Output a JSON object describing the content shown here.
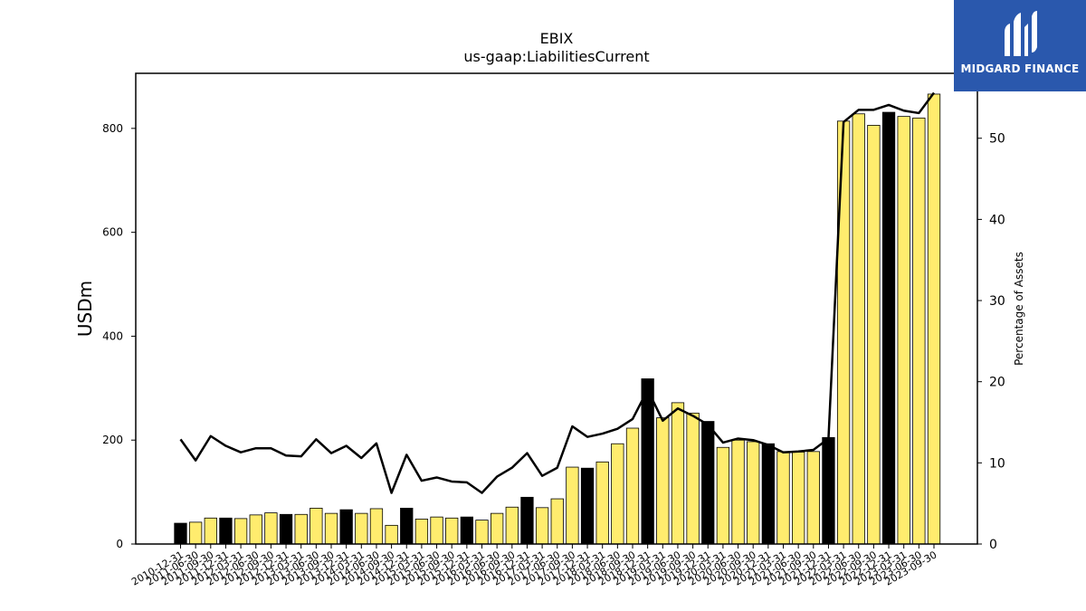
{
  "chart_data": {
    "type": "bar",
    "title": "EBIX",
    "subtitle": "us-gaap:LiabilitiesCurrent",
    "ylabel": "USDm",
    "y2label": "Percentage of Assets",
    "ylim": [
      0,
      906
    ],
    "y2lim": [
      0,
      58
    ],
    "yticks": [
      0,
      200,
      400,
      600,
      800
    ],
    "y2ticks": [
      0,
      10,
      20,
      30,
      40,
      50
    ],
    "grid": false,
    "categories": [
      "2010-12-31",
      "2011-06-30",
      "2011-09-30",
      "2011-12-31",
      "2012-03-31",
      "2012-06-30",
      "2012-09-30",
      "2012-12-31",
      "2013-03-31",
      "2013-06-30",
      "2013-09-30",
      "2013-12-31",
      "2014-03-31",
      "2014-06-30",
      "2014-09-30",
      "2014-12-31",
      "2015-03-31",
      "2015-06-30",
      "2015-09-30",
      "2015-12-31",
      "2016-03-31",
      "2016-06-30",
      "2016-09-30",
      "2016-12-31",
      "2017-03-31",
      "2017-06-30",
      "2017-09-30",
      "2017-12-31",
      "2018-03-31",
      "2018-06-30",
      "2018-09-30",
      "2018-12-31",
      "2019-03-31",
      "2019-06-30",
      "2019-09-30",
      "2019-12-31",
      "2020-03-31",
      "2020-06-30",
      "2020-09-30",
      "2020-12-31",
      "2021-03-31",
      "2021-06-30",
      "2021-09-30",
      "2021-12-31",
      "2022-03-31",
      "2022-06-30",
      "2022-09-30",
      "2022-12-31",
      "2023-03-31",
      "2023-06-30",
      "2023-09-30"
    ],
    "series": [
      {
        "kind": "bar",
        "values": [
          40,
          42,
          50,
          50,
          49,
          56,
          60,
          57,
          57,
          69,
          59,
          66,
          59,
          68,
          36,
          69,
          48,
          52,
          50,
          52,
          46,
          59,
          71,
          90,
          70,
          87,
          148,
          146,
          158,
          193,
          223,
          318,
          243,
          272,
          252,
          236,
          186,
          200,
          197,
          193,
          178,
          177,
          178,
          205,
          814,
          828,
          806,
          831,
          823,
          820,
          866
        ],
        "annual_flags": [
          1,
          0,
          0,
          1,
          0,
          0,
          0,
          1,
          0,
          0,
          0,
          1,
          0,
          0,
          0,
          1,
          0,
          0,
          0,
          1,
          0,
          0,
          0,
          1,
          0,
          0,
          0,
          1,
          0,
          0,
          0,
          1,
          0,
          0,
          0,
          1,
          0,
          0,
          0,
          1,
          0,
          0,
          0,
          1,
          0,
          0,
          0,
          1,
          0,
          0,
          0
        ],
        "colors": {
          "annual": "#000000",
          "quarterly": "#ffec6e",
          "edge": "#000000"
        }
      },
      {
        "kind": "line",
        "axis": "right",
        "values": [
          12.9,
          10.3,
          13.3,
          12.1,
          11.3,
          11.8,
          11.8,
          10.9,
          10.8,
          12.9,
          11.2,
          12.1,
          10.6,
          12.4,
          6.3,
          11.0,
          7.8,
          8.2,
          7.7,
          7.6,
          6.3,
          8.3,
          9.4,
          11.2,
          8.4,
          9.4,
          14.5,
          13.2,
          13.6,
          14.2,
          15.4,
          19.0,
          15.2,
          16.7,
          15.8,
          14.7,
          12.5,
          13.0,
          12.8,
          12.2,
          11.3,
          11.4,
          11.6,
          13.0,
          52.0,
          53.5,
          53.5,
          54.1,
          53.4,
          53.1,
          55.6
        ],
        "color": "#000000"
      }
    ]
  },
  "logo": {
    "text": "MIDGARD FINANCE",
    "background": "#2a58ad"
  }
}
